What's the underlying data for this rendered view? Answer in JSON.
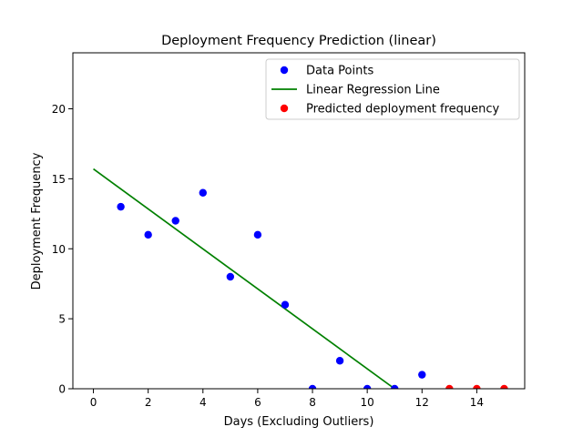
{
  "chart_data": {
    "type": "scatter",
    "title": "Deployment Frequency Prediction (linear)",
    "xlabel": "Days (Excluding Outliers)",
    "ylabel": "Deployment Frequency",
    "xlim": [
      -0.75,
      15.75
    ],
    "ylim": [
      0,
      24
    ],
    "xticks": [
      0,
      2,
      4,
      6,
      8,
      10,
      12,
      14
    ],
    "yticks": [
      0,
      5,
      10,
      15,
      20
    ],
    "grid": false,
    "legend_position": "top-right",
    "series": [
      {
        "name": "Data Points",
        "kind": "scatter",
        "color": "#0000ff",
        "x": [
          1,
          2,
          3,
          4,
          5,
          6,
          7,
          8,
          9,
          10,
          11,
          12
        ],
        "y": [
          13,
          11,
          12,
          14,
          8,
          11,
          6,
          0,
          2,
          0,
          0,
          1
        ]
      },
      {
        "name": "Linear Regression Line",
        "kind": "line",
        "color": "#008000",
        "x": [
          0,
          11
        ],
        "y": [
          15.7,
          0
        ]
      },
      {
        "name": "Predicted deployment frequency",
        "kind": "scatter",
        "color": "#ff0000",
        "x": [
          13,
          14,
          15
        ],
        "y": [
          0,
          0,
          0
        ]
      }
    ]
  }
}
